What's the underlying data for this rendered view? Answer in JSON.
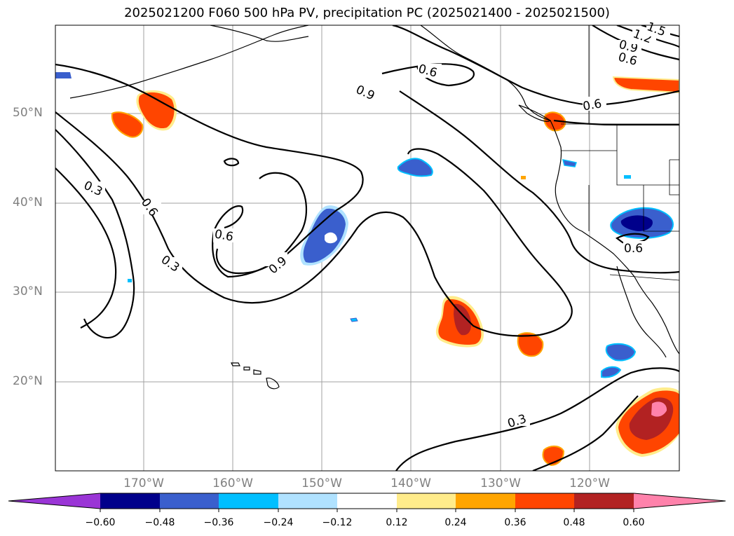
{
  "title": "2025021200 F060 500 hPa PV, precipitation PC (2025021400 - 2025021500)",
  "latitude_labels": [
    "50°N",
    "40°N",
    "30°N",
    "20°N"
  ],
  "longitude_labels": [
    "170°W",
    "160°W",
    "150°W",
    "140°W",
    "130°W",
    "120°W"
  ],
  "contour_labels": [
    "0.3",
    "0.6",
    "0.9",
    "0.6",
    "0.9",
    "0.6",
    "0.3",
    "0.6",
    "0.9",
    "1.2",
    "1.5",
    "0.6",
    "0.6",
    "0.3"
  ],
  "colorbar": {
    "tick_labels": [
      "−0.60",
      "−0.48",
      "−0.36",
      "−0.24",
      "−0.12",
      "0.12",
      "0.24",
      "0.36",
      "0.48",
      "0.60"
    ],
    "colors": [
      "#9a35d6",
      "#00008b",
      "#3a5fcd",
      "#00bfff",
      "#b0e2ff",
      "#ffffff",
      "#ffec8b",
      "#ffa500",
      "#ff4500",
      "#b22222",
      "#ff82ab"
    ]
  },
  "colors": {
    "grid": "#a0a0a0",
    "coast": "#000000",
    "pv_contour": "#000000"
  }
}
